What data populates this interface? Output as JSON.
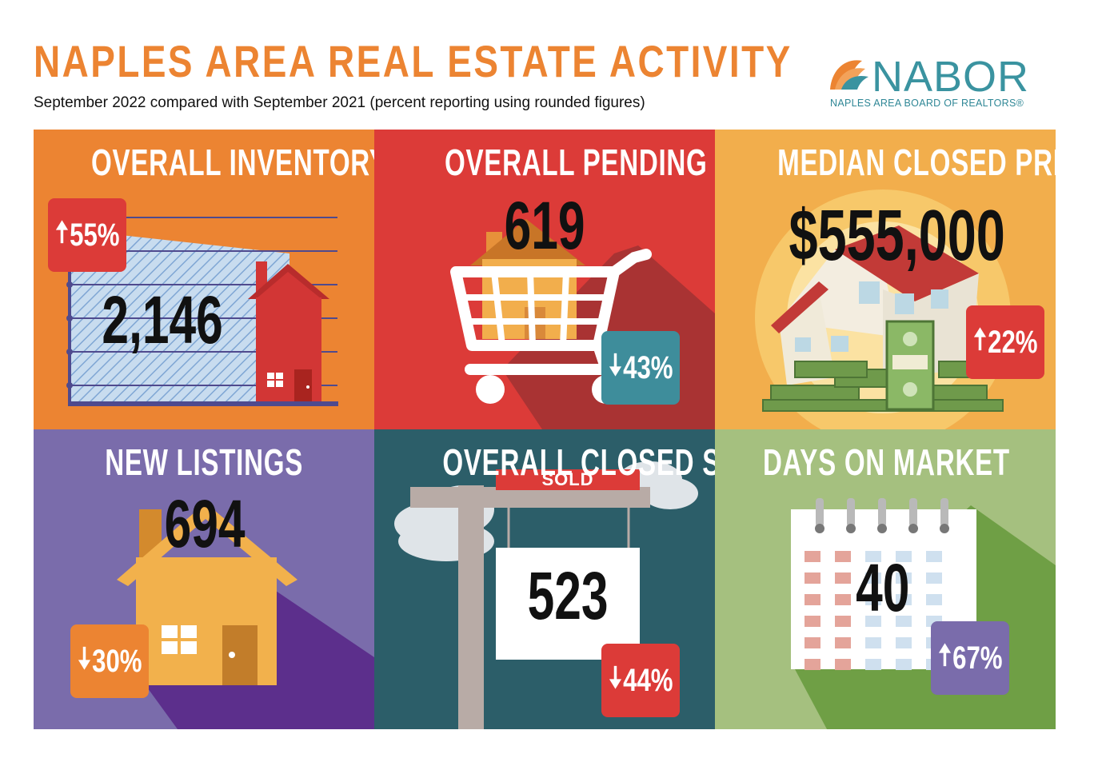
{
  "header": {
    "title": "NAPLES AREA REAL ESTATE ACTIVITY",
    "subtitle": "September 2022 compared with September 2021 (percent reporting using rounded figures)"
  },
  "logo": {
    "wordmark": "NABOR",
    "tagline": "NAPLES AREA BOARD OF REALTORS®"
  },
  "colors": {
    "orange": "#ec8432",
    "red": "#dc3b38",
    "gold": "#f2ae4c",
    "purple": "#7a6cab",
    "teal": "#2c5e69",
    "green": "#a5c07f"
  },
  "panels": {
    "inventory": {
      "title": "OVERALL INVENTORY",
      "value": "2,146",
      "change": "55%",
      "direction": "up"
    },
    "pending": {
      "title": "OVERALL PENDING SALES",
      "value": "619",
      "change": "43%",
      "direction": "down"
    },
    "median_price": {
      "title": "MEDIAN CLOSED PRICE",
      "value": "$555,000",
      "change": "22%",
      "direction": "up"
    },
    "new_listings": {
      "title": "NEW LISTINGS",
      "value": "694",
      "change": "30%",
      "direction": "down"
    },
    "closed_sales": {
      "title": "OVERALL CLOSED SALES",
      "value": "523",
      "change": "44%",
      "direction": "down",
      "sign_label": "SOLD"
    },
    "days_on_market": {
      "title": "DAYS ON MARKET",
      "value": "40",
      "change": "67%",
      "direction": "up"
    }
  },
  "arrows": {
    "up": "🠅",
    "down": "🠇"
  }
}
